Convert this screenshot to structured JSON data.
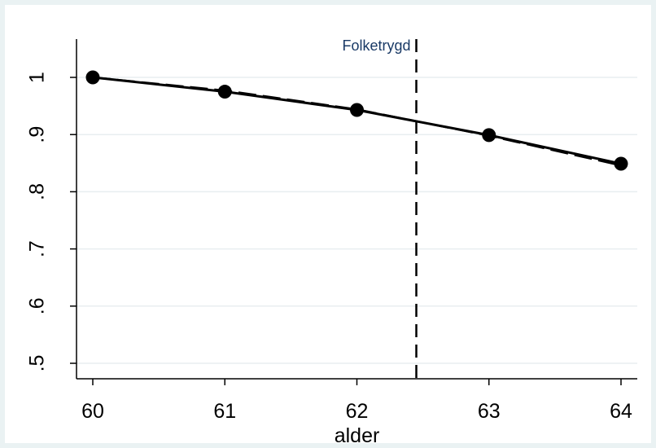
{
  "chart_data": {
    "type": "line",
    "title": "",
    "xlabel": "alder",
    "ylabel": "",
    "xlim": [
      60,
      64
    ],
    "ylim": [
      0.5,
      1.0
    ],
    "x_ticks": [
      60,
      61,
      62,
      63,
      64
    ],
    "x_tick_labels": [
      "60",
      "61",
      "62",
      "63",
      "64"
    ],
    "y_ticks": [
      0.5,
      0.6,
      0.7,
      0.8,
      0.9,
      1.0
    ],
    "y_tick_labels": [
      ".5",
      ".6",
      ".7",
      ".8",
      ".9",
      "1"
    ],
    "grid": true,
    "series": [
      {
        "style": "solid-with-markers",
        "color": "#000000",
        "x": [
          60,
          61,
          62,
          63,
          64
        ],
        "values": [
          1.0,
          0.975,
          0.943,
          0.899,
          0.849
        ]
      },
      {
        "style": "dashed",
        "color": "#000000",
        "x": [
          60,
          61,
          62,
          63,
          64
        ],
        "values": [
          1.0,
          0.977,
          0.944,
          0.898,
          0.846
        ]
      }
    ],
    "vline": {
      "x": 62.45,
      "style": "dashed",
      "label": "Folketrygd",
      "label_color": "#1a3a66"
    }
  }
}
